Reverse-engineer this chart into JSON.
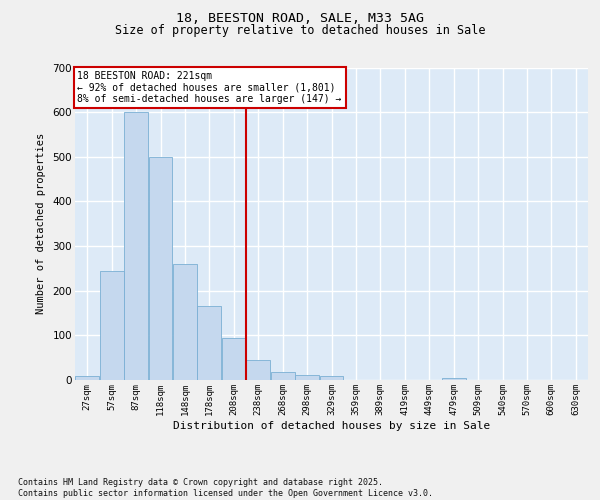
{
  "title_line1": "18, BEESTON ROAD, SALE, M33 5AG",
  "title_line2": "Size of property relative to detached houses in Sale",
  "xlabel": "Distribution of detached houses by size in Sale",
  "ylabel": "Number of detached properties",
  "bin_labels": [
    "27sqm",
    "57sqm",
    "87sqm",
    "118sqm",
    "148sqm",
    "178sqm",
    "208sqm",
    "238sqm",
    "268sqm",
    "298sqm",
    "329sqm",
    "359sqm",
    "389sqm",
    "419sqm",
    "449sqm",
    "479sqm",
    "509sqm",
    "540sqm",
    "570sqm",
    "600sqm",
    "630sqm"
  ],
  "bar_heights": [
    10,
    245,
    600,
    500,
    260,
    165,
    95,
    45,
    18,
    12,
    8,
    0,
    0,
    0,
    0,
    5,
    0,
    0,
    0,
    0,
    0
  ],
  "bar_color": "#c5d8ee",
  "bar_edge_color": "#7aafd4",
  "bg_color": "#ddeaf7",
  "grid_color": "#ffffff",
  "vline_color": "#cc0000",
  "vline_x": 6.5,
  "annotation_line1": "18 BEESTON ROAD: 221sqm",
  "annotation_line2": "← 92% of detached houses are smaller (1,801)",
  "annotation_line3": "8% of semi-detached houses are larger (147) →",
  "footnote_line1": "Contains HM Land Registry data © Crown copyright and database right 2025.",
  "footnote_line2": "Contains public sector information licensed under the Open Government Licence v3.0.",
  "ylim": [
    0,
    700
  ],
  "yticks": [
    0,
    100,
    200,
    300,
    400,
    500,
    600,
    700
  ],
  "fig_bg": "#f0f0f0",
  "title1_fontsize": 9.5,
  "title2_fontsize": 8.5
}
